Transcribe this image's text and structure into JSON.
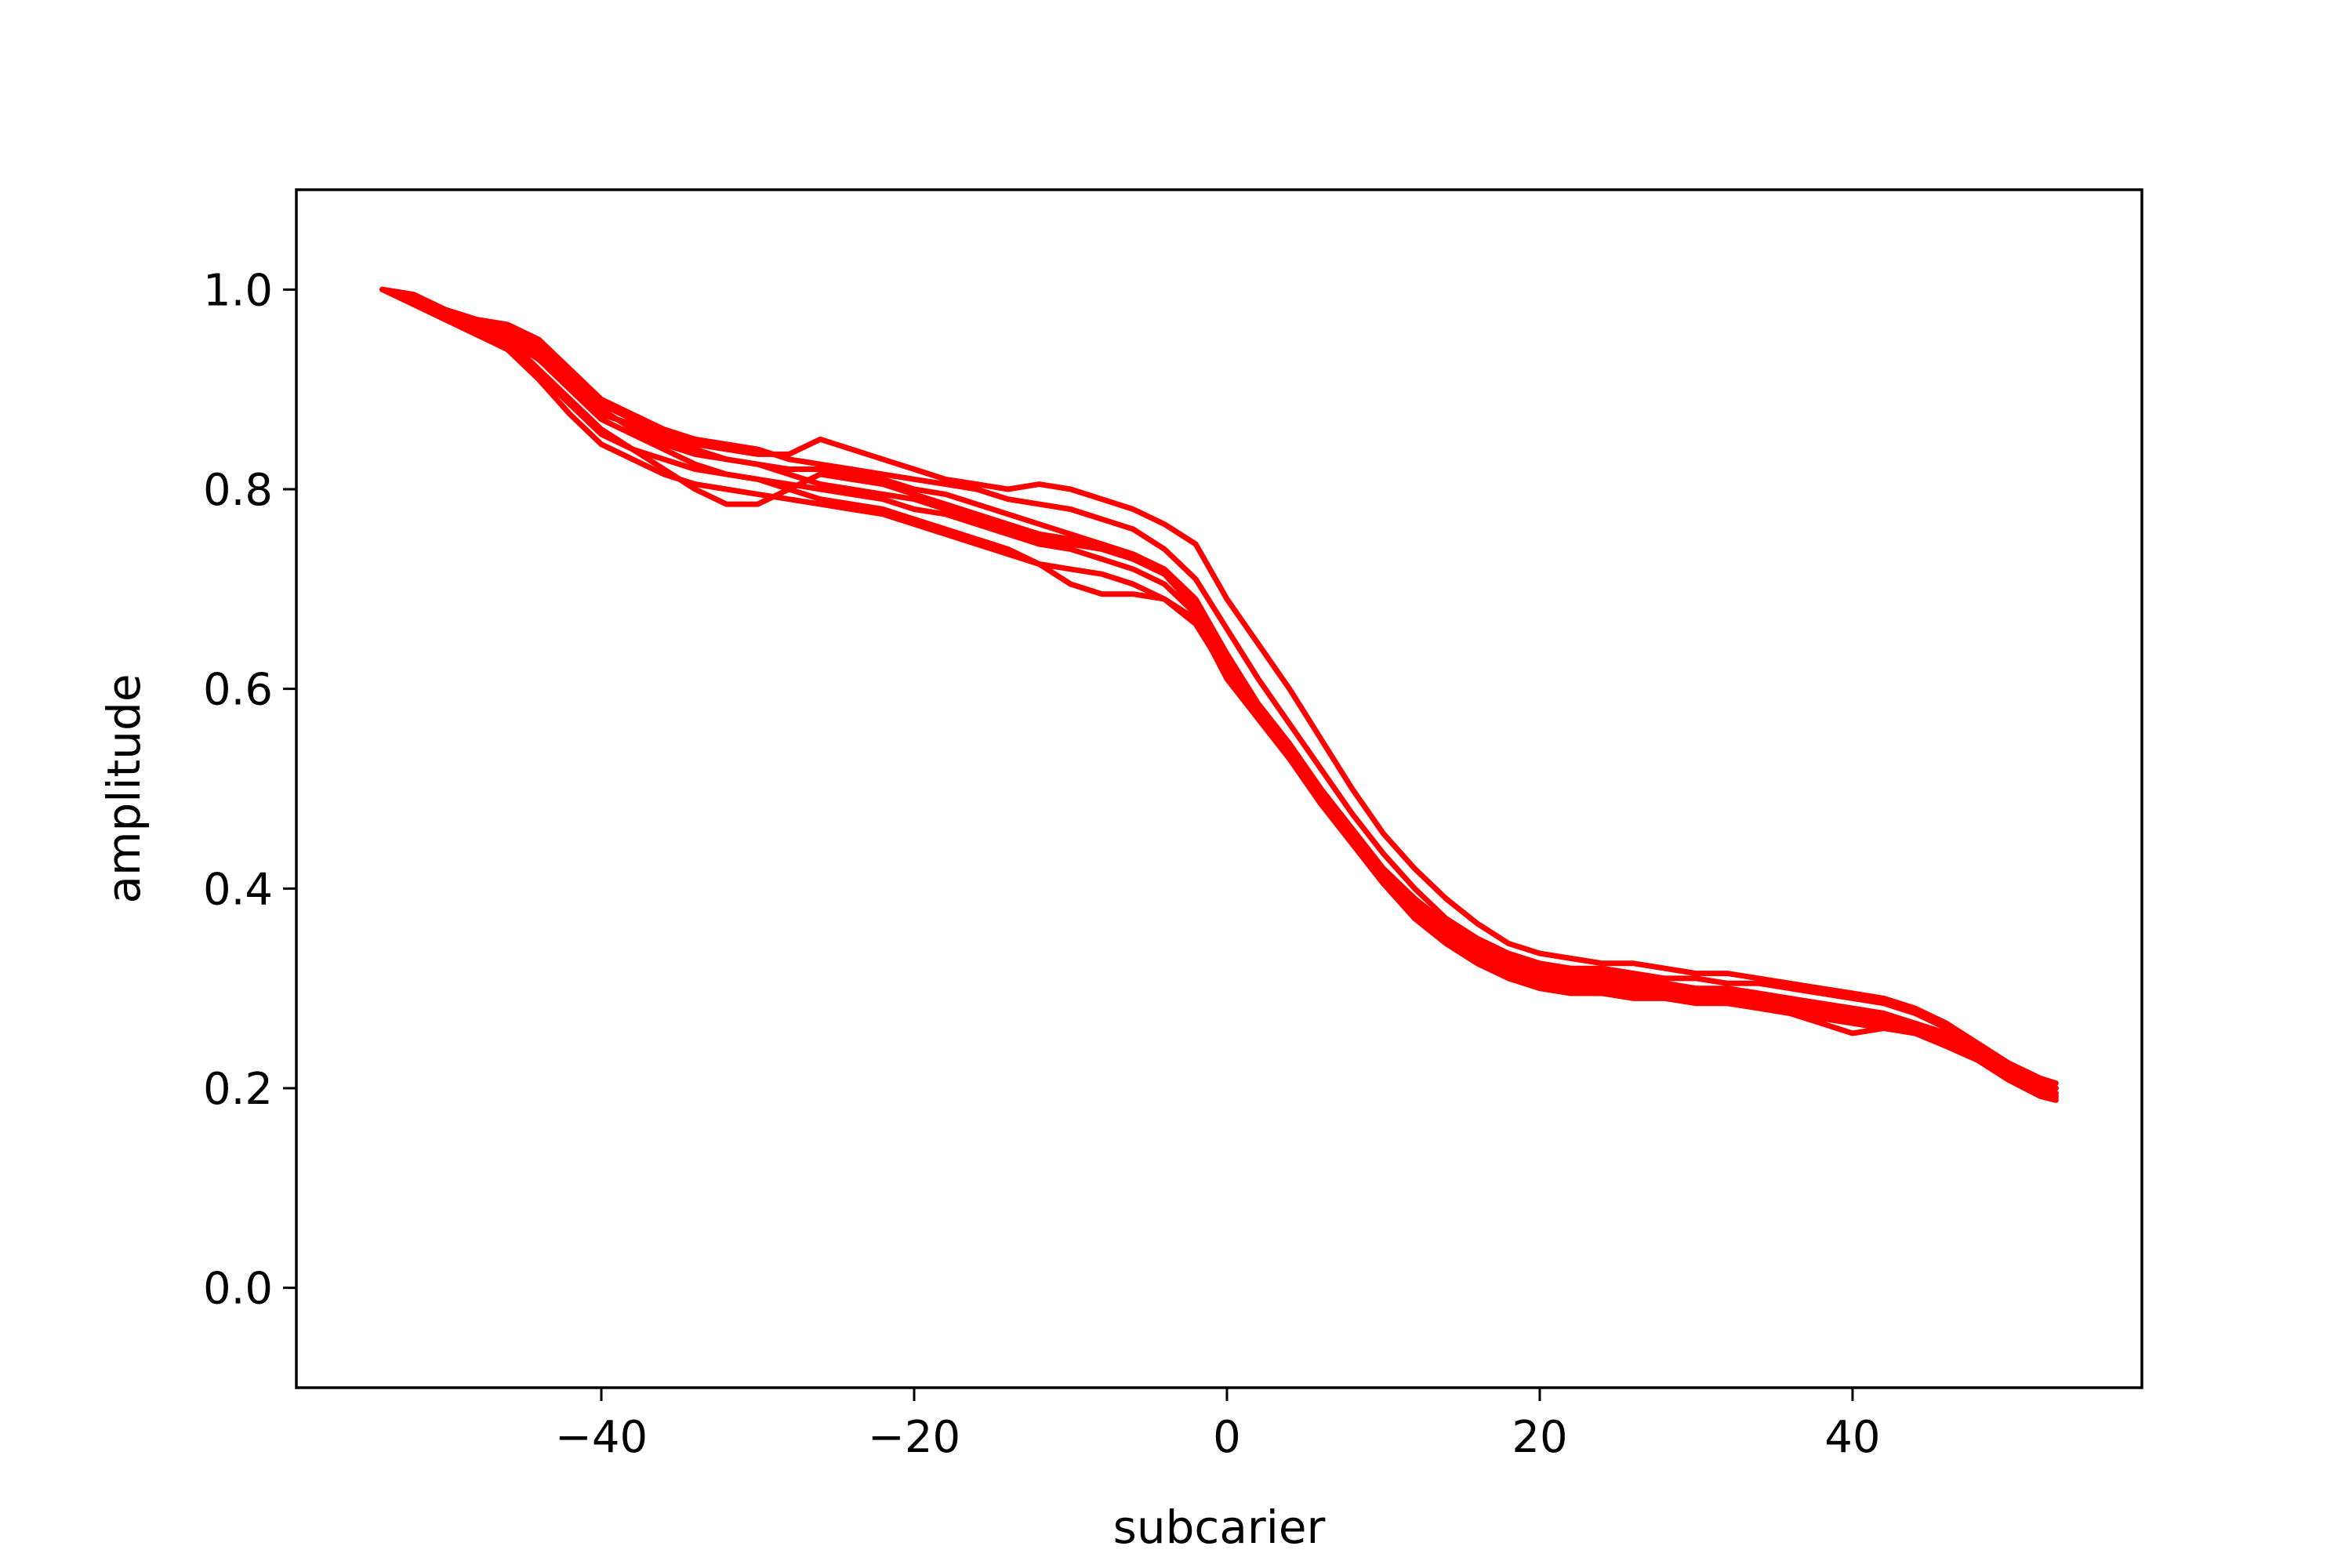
{
  "chart_data": {
    "type": "line",
    "title": "",
    "xlabel": "subcarier",
    "ylabel": "amplitude",
    "xlim": [
      -59.5,
      58.5
    ],
    "ylim": [
      -0.1,
      1.1
    ],
    "xticks": [
      -40,
      -20,
      0,
      20,
      40
    ],
    "xtick_labels": [
      "−40",
      "−20",
      "0",
      "20",
      "40"
    ],
    "yticks": [
      0.0,
      0.2,
      0.4,
      0.6,
      0.8,
      1.0
    ],
    "ytick_labels": [
      "0.0",
      "0.2",
      "0.4",
      "0.6",
      "0.8",
      "1.0"
    ],
    "grid": false,
    "legend": "none",
    "line_color": "#ff0000",
    "x": [
      -54,
      -52,
      -50,
      -48,
      -46,
      -44,
      -42,
      -40,
      -38,
      -36,
      -34,
      -32,
      -30,
      -28,
      -26,
      -24,
      -22,
      -20,
      -18,
      -16,
      -14,
      -12,
      -10,
      -8,
      -6,
      -4,
      -2,
      0,
      2,
      4,
      6,
      8,
      10,
      12,
      14,
      16,
      18,
      20,
      22,
      24,
      26,
      28,
      30,
      32,
      34,
      36,
      38,
      40,
      42,
      44,
      46,
      48,
      50,
      52,
      53
    ],
    "series": [
      {
        "values": [
          1.0,
          0.99,
          0.975,
          0.965,
          0.955,
          0.935,
          0.905,
          0.875,
          0.865,
          0.85,
          0.84,
          0.83,
          0.825,
          0.82,
          0.82,
          0.815,
          0.81,
          0.8,
          0.795,
          0.785,
          0.775,
          0.765,
          0.755,
          0.745,
          0.735,
          0.72,
          0.69,
          0.635,
          0.585,
          0.545,
          0.5,
          0.46,
          0.42,
          0.39,
          0.365,
          0.345,
          0.33,
          0.32,
          0.315,
          0.31,
          0.31,
          0.305,
          0.3,
          0.3,
          0.295,
          0.29,
          0.285,
          0.28,
          0.275,
          0.265,
          0.25,
          0.235,
          0.215,
          0.2,
          0.195
        ]
      },
      {
        "values": [
          1.0,
          0.985,
          0.97,
          0.96,
          0.95,
          0.93,
          0.9,
          0.87,
          0.855,
          0.84,
          0.825,
          0.815,
          0.81,
          0.805,
          0.8,
          0.795,
          0.79,
          0.78,
          0.775,
          0.765,
          0.755,
          0.745,
          0.74,
          0.73,
          0.72,
          0.705,
          0.675,
          0.62,
          0.575,
          0.535,
          0.49,
          0.45,
          0.41,
          0.38,
          0.355,
          0.335,
          0.32,
          0.31,
          0.305,
          0.3,
          0.3,
          0.295,
          0.29,
          0.29,
          0.285,
          0.28,
          0.275,
          0.27,
          0.265,
          0.26,
          0.245,
          0.23,
          0.21,
          0.195,
          0.19
        ]
      },
      {
        "values": [
          1.0,
          0.995,
          0.98,
          0.97,
          0.96,
          0.945,
          0.915,
          0.885,
          0.87,
          0.855,
          0.845,
          0.84,
          0.835,
          0.835,
          0.85,
          0.84,
          0.83,
          0.82,
          0.81,
          0.805,
          0.8,
          0.805,
          0.8,
          0.79,
          0.78,
          0.765,
          0.745,
          0.69,
          0.645,
          0.6,
          0.55,
          0.5,
          0.455,
          0.42,
          0.39,
          0.365,
          0.345,
          0.335,
          0.33,
          0.325,
          0.325,
          0.32,
          0.315,
          0.315,
          0.31,
          0.305,
          0.3,
          0.295,
          0.29,
          0.28,
          0.265,
          0.245,
          0.225,
          0.21,
          0.205
        ]
      },
      {
        "values": [
          1.0,
          0.99,
          0.975,
          0.965,
          0.95,
          0.92,
          0.89,
          0.86,
          0.84,
          0.82,
          0.8,
          0.785,
          0.785,
          0.8,
          0.815,
          0.81,
          0.805,
          0.795,
          0.785,
          0.775,
          0.765,
          0.755,
          0.75,
          0.74,
          0.73,
          0.715,
          0.685,
          0.625,
          0.58,
          0.54,
          0.495,
          0.455,
          0.415,
          0.385,
          0.36,
          0.34,
          0.325,
          0.315,
          0.31,
          0.305,
          0.305,
          0.3,
          0.3,
          0.295,
          0.29,
          0.285,
          0.28,
          0.275,
          0.27,
          0.262,
          0.248,
          0.232,
          0.212,
          0.198,
          0.192
        ]
      },
      {
        "values": [
          1.0,
          0.99,
          0.975,
          0.96,
          0.945,
          0.915,
          0.885,
          0.855,
          0.84,
          0.83,
          0.82,
          0.815,
          0.81,
          0.8,
          0.79,
          0.785,
          0.78,
          0.77,
          0.76,
          0.75,
          0.74,
          0.725,
          0.705,
          0.695,
          0.695,
          0.69,
          0.67,
          0.61,
          0.57,
          0.53,
          0.485,
          0.445,
          0.405,
          0.375,
          0.35,
          0.33,
          0.315,
          0.305,
          0.3,
          0.3,
          0.295,
          0.295,
          0.295,
          0.29,
          0.285,
          0.275,
          0.265,
          0.255,
          0.26,
          0.265,
          0.255,
          0.24,
          0.22,
          0.205,
          0.2
        ]
      },
      {
        "values": [
          1.0,
          0.995,
          0.98,
          0.97,
          0.965,
          0.95,
          0.92,
          0.89,
          0.875,
          0.86,
          0.85,
          0.845,
          0.84,
          0.83,
          0.825,
          0.82,
          0.815,
          0.81,
          0.805,
          0.8,
          0.79,
          0.785,
          0.78,
          0.77,
          0.76,
          0.74,
          0.71,
          0.66,
          0.61,
          0.565,
          0.52,
          0.475,
          0.435,
          0.4,
          0.37,
          0.35,
          0.335,
          0.325,
          0.32,
          0.32,
          0.315,
          0.31,
          0.31,
          0.305,
          0.305,
          0.3,
          0.295,
          0.29,
          0.285,
          0.275,
          0.26,
          0.24,
          0.22,
          0.205,
          0.2
        ]
      },
      {
        "values": [
          1.0,
          0.99,
          0.97,
          0.955,
          0.94,
          0.91,
          0.875,
          0.845,
          0.83,
          0.815,
          0.805,
          0.8,
          0.795,
          0.79,
          0.785,
          0.78,
          0.775,
          0.765,
          0.755,
          0.745,
          0.735,
          0.725,
          0.72,
          0.715,
          0.705,
          0.69,
          0.665,
          0.615,
          0.57,
          0.53,
          0.485,
          0.445,
          0.405,
          0.37,
          0.345,
          0.325,
          0.31,
          0.3,
          0.295,
          0.295,
          0.29,
          0.29,
          0.285,
          0.285,
          0.28,
          0.275,
          0.27,
          0.265,
          0.26,
          0.255,
          0.242,
          0.228,
          0.208,
          0.192,
          0.188
        ]
      },
      {
        "values": [
          1.0,
          0.995,
          0.98,
          0.97,
          0.96,
          0.94,
          0.91,
          0.88,
          0.86,
          0.845,
          0.835,
          0.83,
          0.825,
          0.815,
          0.805,
          0.8,
          0.795,
          0.79,
          0.78,
          0.77,
          0.76,
          0.75,
          0.745,
          0.74,
          0.73,
          0.715,
          0.68,
          0.63,
          0.585,
          0.545,
          0.5,
          0.455,
          0.42,
          0.39,
          0.36,
          0.34,
          0.325,
          0.32,
          0.315,
          0.315,
          0.31,
          0.305,
          0.3,
          0.295,
          0.29,
          0.285,
          0.28,
          0.275,
          0.27,
          0.262,
          0.25,
          0.235,
          0.215,
          0.2,
          0.195
        ]
      }
    ]
  }
}
